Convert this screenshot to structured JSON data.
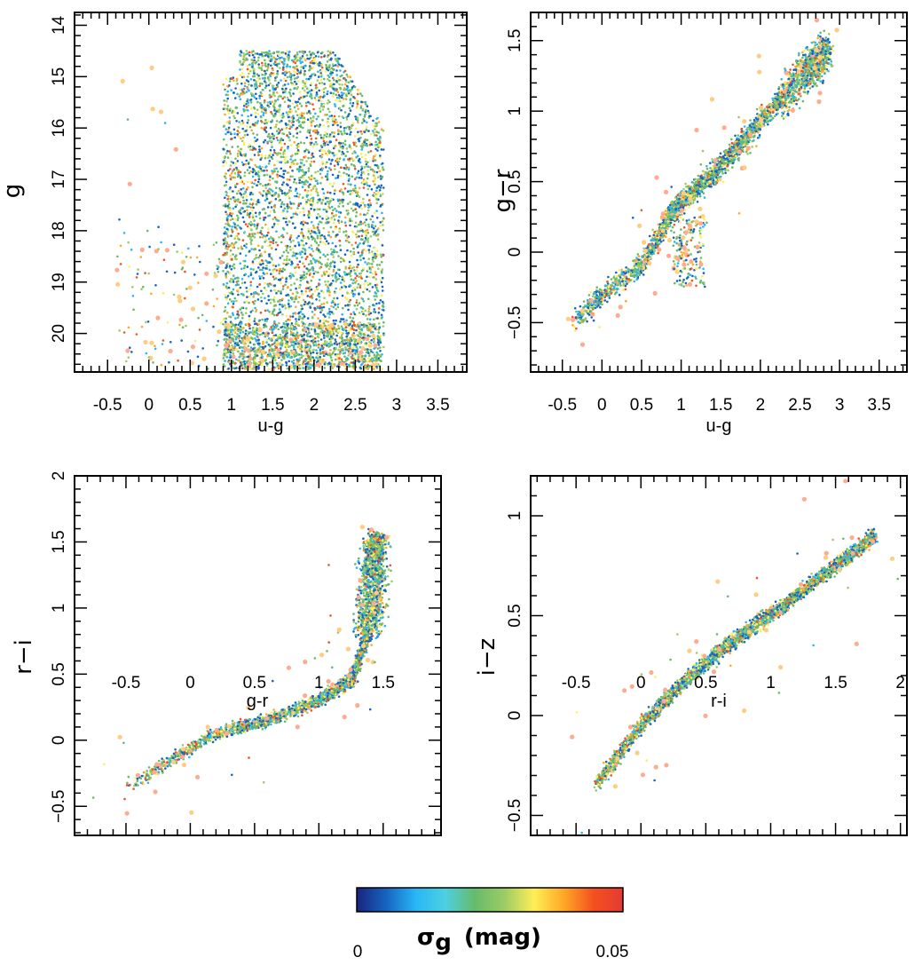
{
  "chart_data": [
    {
      "type": "scatter",
      "id": "g_vs_ug",
      "xlabel": "u-g",
      "ylabel": "g",
      "xlim": [
        -0.9,
        3.85
      ],
      "ylim": [
        20.75,
        13.75
      ],
      "y_inverted": true,
      "y_tick_labels_rotated": true,
      "xticks": [
        "-0.5",
        "0",
        "0.5",
        "1",
        "1.5",
        "2",
        "2.5",
        "3",
        "3.5"
      ],
      "yticks": [
        "14",
        "15",
        "16",
        "17",
        "18",
        "19",
        "20"
      ],
      "description_points": [
        {
          "x": 0.95,
          "y": 20.5
        },
        {
          "x": 1.1,
          "y": 14.8
        },
        {
          "x": 2.0,
          "y": 15.3
        },
        {
          "x": 2.7,
          "y": 16.2
        },
        {
          "x": 2.85,
          "y": 19.5
        },
        {
          "x": 2.5,
          "y": 20.3
        },
        {
          "x": 0.2,
          "y": 20.4
        },
        {
          "x": -0.3,
          "y": 17.3
        }
      ],
      "grid": false
    },
    {
      "type": "scatter",
      "id": "gr_vs_ug",
      "xlabel": "u-g",
      "ylabel": "g−r",
      "xlim": [
        -0.9,
        3.85
      ],
      "ylim": [
        -0.85,
        1.7
      ],
      "xticks": [
        "-0.5",
        "0",
        "0.5",
        "1",
        "1.5",
        "2",
        "2.5",
        "3",
        "3.5"
      ],
      "yticks": [
        "−0.5",
        "0",
        "0.5",
        "1",
        "1.5"
      ],
      "locus": [
        {
          "x": -0.35,
          "y": -0.5
        },
        {
          "x": 0.0,
          "y": -0.3
        },
        {
          "x": 0.5,
          "y": -0.1
        },
        {
          "x": 0.85,
          "y": 0.25
        },
        {
          "x": 1.0,
          "y": 0.35
        },
        {
          "x": 1.4,
          "y": 0.55
        },
        {
          "x": 1.8,
          "y": 0.8
        },
        {
          "x": 2.2,
          "y": 1.05
        },
        {
          "x": 2.6,
          "y": 1.3
        },
        {
          "x": 2.85,
          "y": 1.42
        }
      ],
      "grid": false
    },
    {
      "type": "scatter",
      "id": "ri_vs_gr",
      "xlabel": "g-r",
      "ylabel": "r−i",
      "xlim": [
        -0.9,
        1.95
      ],
      "ylim": [
        -0.72,
        2.0
      ],
      "xticks": [
        "-0.5",
        "0",
        "0.5",
        "1",
        "1.5"
      ],
      "yticks": [
        "−0.5",
        "0",
        "0.5",
        "1",
        "1.5",
        "2"
      ],
      "locus": [
        {
          "x": -0.5,
          "y": -0.37
        },
        {
          "x": -0.2,
          "y": -0.18
        },
        {
          "x": 0.2,
          "y": 0.05
        },
        {
          "x": 0.6,
          "y": 0.15
        },
        {
          "x": 1.0,
          "y": 0.3
        },
        {
          "x": 1.25,
          "y": 0.45
        },
        {
          "x": 1.38,
          "y": 0.8
        },
        {
          "x": 1.42,
          "y": 1.2
        },
        {
          "x": 1.45,
          "y": 1.55
        }
      ],
      "grid": false
    },
    {
      "type": "scatter",
      "id": "iz_vs_ri",
      "xlabel": "r-i",
      "ylabel": "i−z",
      "xlim": [
        -0.85,
        2.05
      ],
      "ylim": [
        -0.6,
        1.2
      ],
      "xticks": [
        "-0.5",
        "0",
        "0.5",
        "1",
        "1.5",
        "2"
      ],
      "yticks": [
        "−0.5",
        "0",
        "0.5",
        "1"
      ],
      "locus": [
        {
          "x": -0.35,
          "y": -0.35
        },
        {
          "x": 0.0,
          "y": -0.05
        },
        {
          "x": 0.3,
          "y": 0.15
        },
        {
          "x": 0.7,
          "y": 0.37
        },
        {
          "x": 1.1,
          "y": 0.55
        },
        {
          "x": 1.5,
          "y": 0.75
        },
        {
          "x": 1.8,
          "y": 0.9
        }
      ],
      "grid": false
    }
  ],
  "colorbar": {
    "title": "σ",
    "title_subscript": "g",
    "title_unit": "(mag)",
    "min_label": "0",
    "max_label": "0.05",
    "min": 0,
    "max": 0.05,
    "colors": [
      "#1a237e",
      "#1565c0",
      "#29b6f6",
      "#4dd0e1",
      "#66bb6a",
      "#9ccc65",
      "#ffee58",
      "#ffa726",
      "#f4511e",
      "#e53935"
    ]
  }
}
